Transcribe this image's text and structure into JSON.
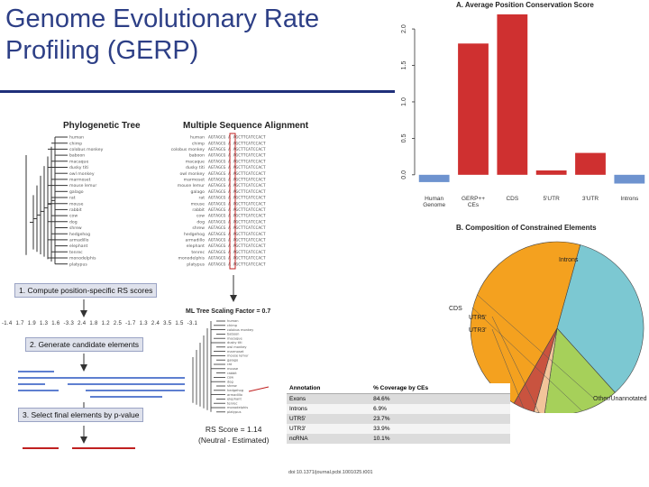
{
  "slide": {
    "title_line1": "Genome Evolutionary Rate",
    "title_line2": "Profiling (GERP)"
  },
  "left_figure": {
    "tree_title": "Phylogenetic Tree",
    "msa_title": "Multiple Sequence Alignment",
    "species": [
      "human",
      "chimp",
      "colobus monkey",
      "baboon",
      "macaque",
      "dusky titi",
      "owl monkey",
      "marmoset",
      "mouse lemur",
      "galago",
      "rat",
      "mouse",
      "rabbit",
      "cow",
      "dog",
      "shrew",
      "hedgehog",
      "armadillo",
      "elephant",
      "tenrec",
      "monodelphis",
      "platypus"
    ],
    "step1": "1. Compute position-specific RS scores",
    "scores": [
      "-1.4",
      "1.7",
      "1.9",
      "1.3",
      "1.6",
      "-3.3",
      "2.4",
      "1.8",
      "1.2",
      "2.5",
      "-1.7",
      "1.3",
      "2.4",
      "3.5",
      "1.5",
      "-3.1"
    ],
    "step2": "2. Generate candidate elements",
    "step3": "3. Select final elements by p-value",
    "ml_title": "ML Tree Scaling Factor = 0.7",
    "rs_score": "RS Score = 1.14",
    "rs_note": "(Neutral - Estimated)"
  },
  "chart_data": [
    {
      "type": "bar",
      "title": "A. Average Position Conservation Score",
      "categories": [
        "Human Genome",
        "GERP++ CEs",
        "CDS",
        "5'UTR",
        "3'UTR",
        "Introns"
      ],
      "values": [
        -0.1,
        1.8,
        2.2,
        0.06,
        0.3,
        -0.12
      ],
      "colors": [
        "#6e93cf",
        "#cf3030",
        "#cf3030",
        "#cf3030",
        "#cf3030",
        "#6e93cf"
      ],
      "ylim": [
        -0.2,
        2.1
      ],
      "yticks": [
        "0.0",
        "0.5",
        "1.0",
        "1.5",
        "2.0"
      ],
      "ytick_values": [
        0.0,
        0.5,
        1.0,
        1.5,
        2.0
      ],
      "xlabel": "",
      "ylabel": ""
    },
    {
      "type": "pie",
      "title": "B. Composition of Constrained Elements",
      "labels": [
        "Introns",
        "CDS",
        "UTR5'",
        "UTR3'",
        "Other/Unannotated"
      ],
      "values": [
        34,
        14,
        2,
        4,
        46
      ],
      "colors": [
        "#7cc8d2",
        "#a6d05a",
        "#f2c49a",
        "#c9533f",
        "#f4a11f"
      ]
    }
  ],
  "table": {
    "headers": [
      "Annotation",
      "% Coverage by CEs"
    ],
    "rows": [
      [
        "Exons",
        "84.6%"
      ],
      [
        "Introns",
        "6.9%"
      ],
      [
        "UTR5'",
        "23.7%"
      ],
      [
        "UTR3'",
        "33.9%"
      ],
      [
        "ncRNA",
        "10.1%"
      ]
    ],
    "doi": "doi:10.1371/journal.pcbi.1001025.t001"
  }
}
